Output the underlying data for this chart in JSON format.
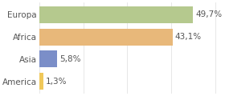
{
  "categories": [
    "Europa",
    "Africa",
    "Asia",
    "America"
  ],
  "values": [
    49.7,
    43.1,
    5.8,
    1.3
  ],
  "labels": [
    "49,7%",
    "43,1%",
    "5,8%",
    "1,3%"
  ],
  "bar_colors": [
    "#b5c98e",
    "#e8b87a",
    "#7b8ec8",
    "#f0c85a"
  ],
  "background_color": "#ffffff",
  "grid_color": "#dddddd",
  "xlim": [
    0,
    58
  ],
  "bar_height": 0.75,
  "label_fontsize": 7.5,
  "category_fontsize": 7.5,
  "label_color": "#555555",
  "grid_ticks": [
    0,
    14.25,
    28.5,
    42.75,
    57.0
  ]
}
